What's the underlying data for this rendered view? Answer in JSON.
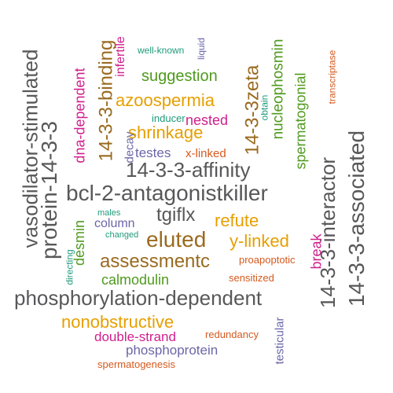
{
  "colors": {
    "dark": "#58585a",
    "orange": "#e69f00",
    "brown": "#9a6a1f",
    "pink": "#d0208e",
    "purple": "#6b66a8",
    "green": "#4f9a1e",
    "teal": "#1f9a7a",
    "rust": "#d45a1f"
  },
  "words": [
    "vasodilator-stimulated",
    "protein-14-3-3",
    "dna-dependent",
    "14-3-3-binding",
    "infertile",
    "well-known",
    "liquid",
    "suggestion",
    "14-3-3zeta",
    "nucleophosmin",
    "spermatogonial",
    "transcriptase",
    "14-3-3-associated",
    "14-3-3-interactor",
    "azoospermia",
    "obtain",
    "inducer",
    "nested",
    "shrinkage",
    "decay",
    "testes",
    "x-linked",
    "14-3-3-affinity",
    "bcl-2-antagonistkiller",
    "tgiflx",
    "males",
    "column",
    "refute",
    "changed",
    "eluted",
    "y-linked",
    "directing",
    "desmin",
    "break",
    "assessmentc",
    "proapoptotic",
    "calmodulin",
    "sensitized",
    "phosphorylation-dependent",
    "nonobstructive",
    "redundancy",
    "double-strand",
    "testicular",
    "phosphoprotein",
    "spermatogenesis"
  ]
}
